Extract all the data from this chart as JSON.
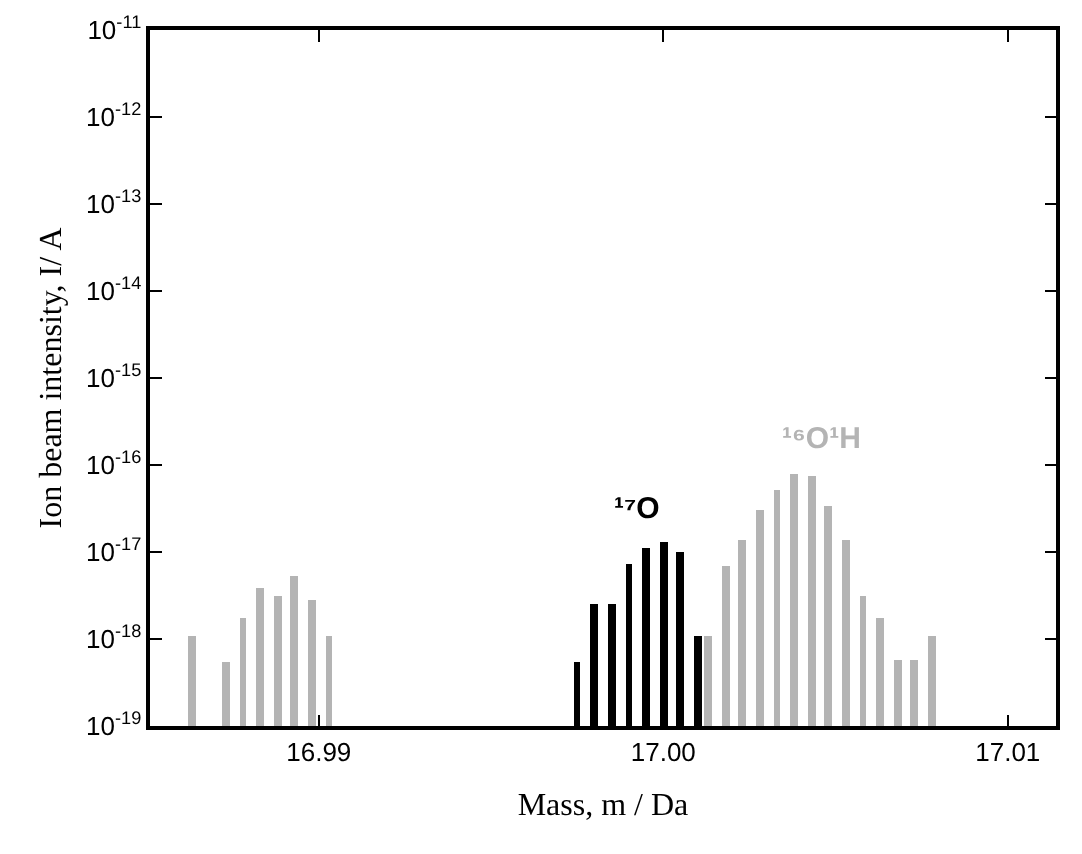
{
  "chart_data": {
    "type": "bar",
    "xlabel": "Mass, m / Da",
    "ylabel": "Ion beam intensity, I/ A",
    "log": "y",
    "grid": false,
    "legend": false,
    "xlim": [
      16.9851,
      17.0114
    ],
    "xticks": [
      {
        "value": 16.99,
        "label": "16.99"
      },
      {
        "value": 17.0,
        "label": "17.00"
      },
      {
        "value": 17.01,
        "label": "17.01"
      }
    ],
    "ylim": [
      1e-19,
      1e-11
    ],
    "yticks": [
      {
        "value": 1e-19,
        "label": "10$^{-19}$"
      },
      {
        "value": 1e-18,
        "label": "10$^{-18}$"
      },
      {
        "value": 1e-17,
        "label": "10$^{-17}$"
      },
      {
        "value": 1e-16,
        "label": "10$^{-16}$"
      },
      {
        "value": 1e-15,
        "label": "10$^{-15}$"
      },
      {
        "value": 1e-14,
        "label": "10$^{-14}$"
      },
      {
        "value": 1e-13,
        "label": "10$^{-13}$"
      },
      {
        "value": 1e-12,
        "label": "10$^{-12}$"
      },
      {
        "value": 1e-11,
        "label": "10$^{-11}$"
      }
    ],
    "series": [
      {
        "color": "#b4b4b4",
        "x": [
          16.9863,
          16.9873,
          16.9878,
          16.9883,
          16.9888,
          16.9893,
          16.9898,
          16.9903
        ],
        "values": [
          1.1e-18,
          5.4e-19,
          1.7e-18,
          3.9e-18,
          3.1e-18,
          5.3e-18,
          2.8e-18,
          1.1e-18
        ]
      },
      {
        "name": "¹⁷O",
        "color": "#000000",
        "x": [
          16.9975,
          16.998,
          16.9985,
          16.999,
          16.9995,
          17.0,
          17.0005,
          17.001
        ],
        "values": [
          5.4e-19,
          2.5e-18,
          2.5e-18,
          7.3e-18,
          1.1e-17,
          1.3e-17,
          1e-17,
          1.1e-18
        ]
      },
      {
        "name": "¹⁶O¹H",
        "color": "#b4b4b4",
        "x": [
          17.0013,
          17.0018,
          17.0023,
          17.0028,
          17.0033,
          17.0038,
          17.0043,
          17.0048,
          17.0053,
          17.0058,
          17.0063,
          17.0068,
          17.0073,
          17.0078
        ],
        "values": [
          1.1e-18,
          6.9e-18,
          1.4e-17,
          3e-17,
          5.2e-17,
          7.9e-17,
          7.5e-17,
          3.4e-17,
          1.4e-17,
          3.1e-18,
          1.7e-18,
          5.7e-19,
          5.7e-19,
          1.1e-18
        ]
      }
    ]
  }
}
